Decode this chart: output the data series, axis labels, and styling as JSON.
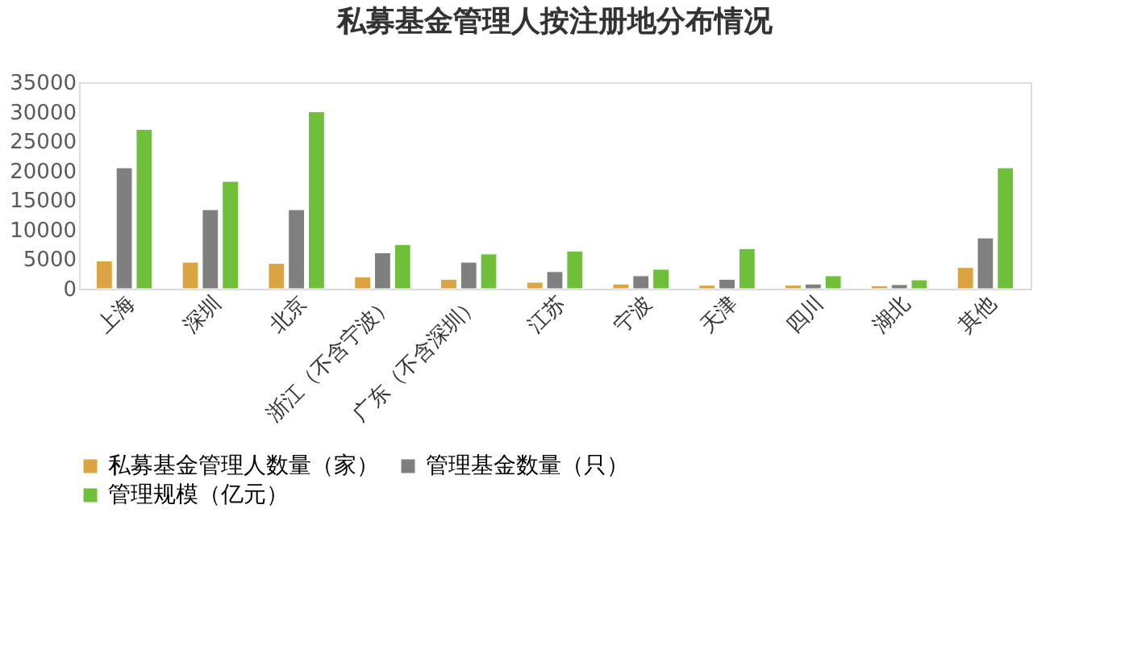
{
  "chart_data": {
    "type": "bar",
    "title": "私募基金管理人按注册地分布情况",
    "categories": [
      "上海",
      "深圳",
      "北京",
      "浙江（不含宁波）",
      "广东（不含深圳）",
      "江苏",
      "宁波",
      "天津",
      "四川",
      "湖北",
      "其他"
    ],
    "series": [
      {
        "name": "私募基金管理人数量（家）",
        "color": "#d9a441",
        "values": [
          4700,
          4500,
          4300,
          2000,
          1600,
          1100,
          800,
          600,
          600,
          500,
          3600
        ]
      },
      {
        "name": "管理基金数量（只）",
        "color": "#7f7f7f",
        "values": [
          20500,
          13400,
          13400,
          6100,
          4500,
          2900,
          2200,
          1600,
          800,
          700,
          8600
        ]
      },
      {
        "name": "管理规模（亿元）",
        "color": "#6fbf3a",
        "values": [
          27000,
          18200,
          30000,
          7500,
          5900,
          6400,
          3300,
          6800,
          2200,
          1500,
          20500
        ]
      }
    ],
    "ylim": [
      0,
      35000
    ],
    "yticks": [
      0,
      5000,
      10000,
      15000,
      20000,
      25000,
      30000,
      35000
    ],
    "grid": false,
    "legend": "bottom"
  }
}
